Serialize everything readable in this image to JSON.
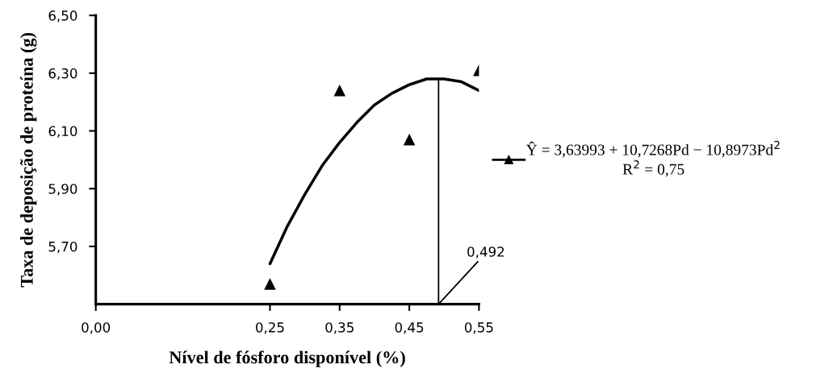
{
  "chart_data": {
    "type": "scatter",
    "xlabel": "Nível de fósforo disponível (%)",
    "ylabel": "Taxa de deposição de proteína (g)",
    "x": [
      0.25,
      0.35,
      0.45,
      0.55
    ],
    "series": [
      {
        "name": "Ŷ = 3,63993 + 10,7268Pd − 10,8973Pd$^{2}$\nR$^{2}$ = 0,75",
        "color": "#000000",
        "marker": "triangle",
        "values": [
          5.57,
          6.24,
          6.07,
          6.31
        ]
      },
      {
        "type": "line",
        "color": "#000000",
        "x": [
          0.25,
          0.275,
          0.3,
          0.325,
          0.35,
          0.375,
          0.4,
          0.425,
          0.45,
          0.475,
          0.492,
          0.5,
          0.525,
          0.55
        ],
        "values": [
          5.64,
          5.77,
          5.88,
          5.98,
          6.06,
          6.13,
          6.19,
          6.23,
          6.26,
          6.28,
          6.28,
          6.28,
          6.27,
          6.24
        ]
      }
    ],
    "xlim": [
      0,
      0.55
    ],
    "xticks": [
      {
        "value": 0,
        "label": "0,00"
      },
      {
        "value": 0.25,
        "label": "0,25"
      },
      {
        "value": 0.35,
        "label": "0,35"
      },
      {
        "value": 0.45,
        "label": "0,45"
      },
      {
        "value": 0.55,
        "label": "0,55"
      }
    ],
    "ylim": [
      5.5,
      6.5
    ],
    "yticks": [
      {
        "value": 5.7,
        "label": "5,70"
      },
      {
        "value": 5.9,
        "label": "5,90"
      },
      {
        "value": 6.1,
        "label": "6,10"
      },
      {
        "value": 6.3,
        "label": "6,30"
      },
      {
        "value": 6.5,
        "label": "6,50"
      }
    ],
    "ref_lines": [
      {
        "axis": "x",
        "value": 0.492,
        "label": "0,492",
        "color": "#000000"
      }
    ],
    "legend": "right",
    "grid": false
  }
}
